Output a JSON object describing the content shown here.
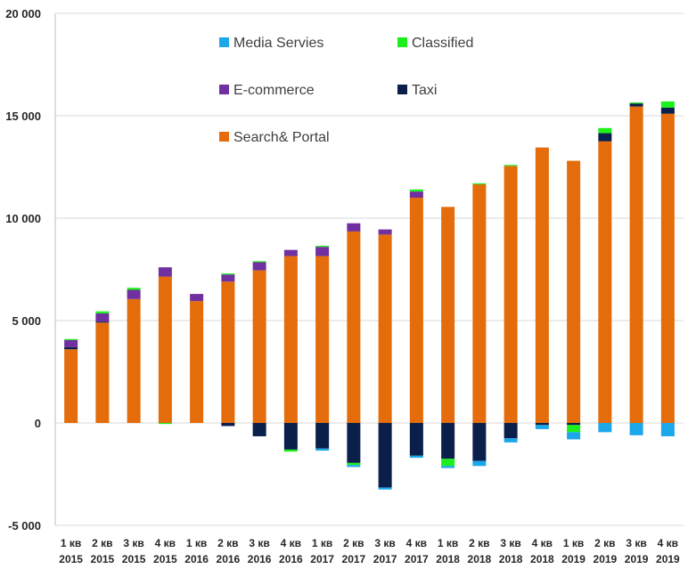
{
  "chart_data": {
    "type": "bar",
    "stacked": true,
    "title": "",
    "xlabel": "",
    "ylabel": "",
    "ylim": [
      -5000,
      20000
    ],
    "yticks": [
      -5000,
      0,
      5000,
      10000,
      15000,
      20000
    ],
    "ytick_labels": [
      "-5 000",
      "0",
      "5 000",
      "10 000",
      "15 000",
      "20 000"
    ],
    "grid": true,
    "legend_position": "top-left",
    "categories": [
      [
        "1 кв",
        "2015"
      ],
      [
        "2 кв",
        "2015"
      ],
      [
        "3 кв",
        "2015"
      ],
      [
        "4 кв",
        "2015"
      ],
      [
        "1 кв",
        "2016"
      ],
      [
        "2 кв",
        "2016"
      ],
      [
        "3 кв",
        "2016"
      ],
      [
        "4 кв",
        "2016"
      ],
      [
        "1 кв",
        "2017"
      ],
      [
        "2 кв",
        "2017"
      ],
      [
        "3 кв",
        "2017"
      ],
      [
        "4 кв",
        "2017"
      ],
      [
        "1 кв",
        "2018"
      ],
      [
        "2 кв",
        "2018"
      ],
      [
        "3 кв",
        "2018"
      ],
      [
        "4 кв",
        "2018"
      ],
      [
        "1 кв",
        "2019"
      ],
      [
        "2 кв",
        "2019"
      ],
      [
        "3 кв",
        "2019"
      ],
      [
        "4 кв",
        "2019"
      ]
    ],
    "series": [
      {
        "name": "Search& Portal",
        "color": "#E46C0A",
        "values": [
          3600,
          4900,
          6050,
          7150,
          5950,
          6900,
          7450,
          8150,
          8150,
          9350,
          9200,
          11000,
          10550,
          11650,
          12550,
          13450,
          12800,
          13750,
          15450,
          15100
        ]
      },
      {
        "name": "Taxi",
        "color": "#0B1F4B",
        "values": [
          100,
          50,
          0,
          0,
          0,
          -150,
          -650,
          -1300,
          -1250,
          -1950,
          -3150,
          -1600,
          -1750,
          -1850,
          -750,
          -100,
          -100,
          400,
          150,
          300
        ]
      },
      {
        "name": "E-commerce",
        "color": "#7030A0",
        "values": [
          350,
          400,
          450,
          450,
          350,
          350,
          400,
          300,
          450,
          400,
          250,
          300,
          0,
          0,
          0,
          0,
          0,
          0,
          0,
          0
        ]
      },
      {
        "name": "Classified",
        "color": "#1BF01B",
        "values": [
          50,
          100,
          100,
          -50,
          0,
          50,
          50,
          -100,
          50,
          -100,
          0,
          100,
          -350,
          50,
          50,
          0,
          -350,
          250,
          50,
          300
        ]
      },
      {
        "name": "Media Servies",
        "color": "#1CA7EA",
        "values": [
          0,
          0,
          0,
          0,
          0,
          0,
          0,
          0,
          -100,
          -100,
          -100,
          -100,
          -100,
          -250,
          -200,
          -200,
          -350,
          -450,
          -600,
          -650
        ]
      }
    ],
    "legend_layout": [
      [
        "Media Servies",
        "Classified"
      ],
      [
        "E-commerce",
        "Taxi"
      ],
      [
        "Search& Portal"
      ]
    ]
  }
}
